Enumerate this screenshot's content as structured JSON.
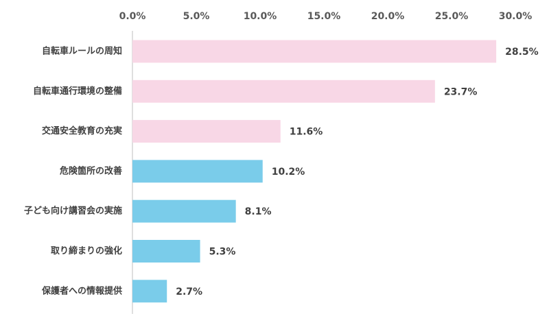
{
  "chart_data": {
    "type": "bar",
    "orientation": "horizontal",
    "categories": [
      "自転車ルールの周知",
      "自転車通行環境の整備",
      "交通安全教育の充実",
      "危険箇所の改善",
      "子ども向け講習会の実施",
      "取り締まりの強化",
      "保護者への情報提供"
    ],
    "values": [
      28.5,
      23.7,
      11.6,
      10.2,
      8.1,
      5.3,
      2.7
    ],
    "value_labels": [
      "28.5%",
      "23.7%",
      "11.6%",
      "10.2%",
      "8.1%",
      "5.3%",
      "2.7%"
    ],
    "xlim": [
      0,
      30
    ],
    "xticks": [
      0,
      5,
      10,
      15,
      20,
      25,
      30
    ],
    "xtick_labels": [
      "0.0%",
      "5.0%",
      "10.0%",
      "15.0%",
      "20.0%",
      "25.0%",
      "30.0%"
    ],
    "axis_position": "top",
    "grid": false,
    "bar_colors": [
      "#f8d7e6",
      "#f8d7e6",
      "#f8d7e6",
      "#7accea",
      "#7accea",
      "#7accea",
      "#7accea"
    ],
    "axis_color": "#bfbfbf"
  }
}
